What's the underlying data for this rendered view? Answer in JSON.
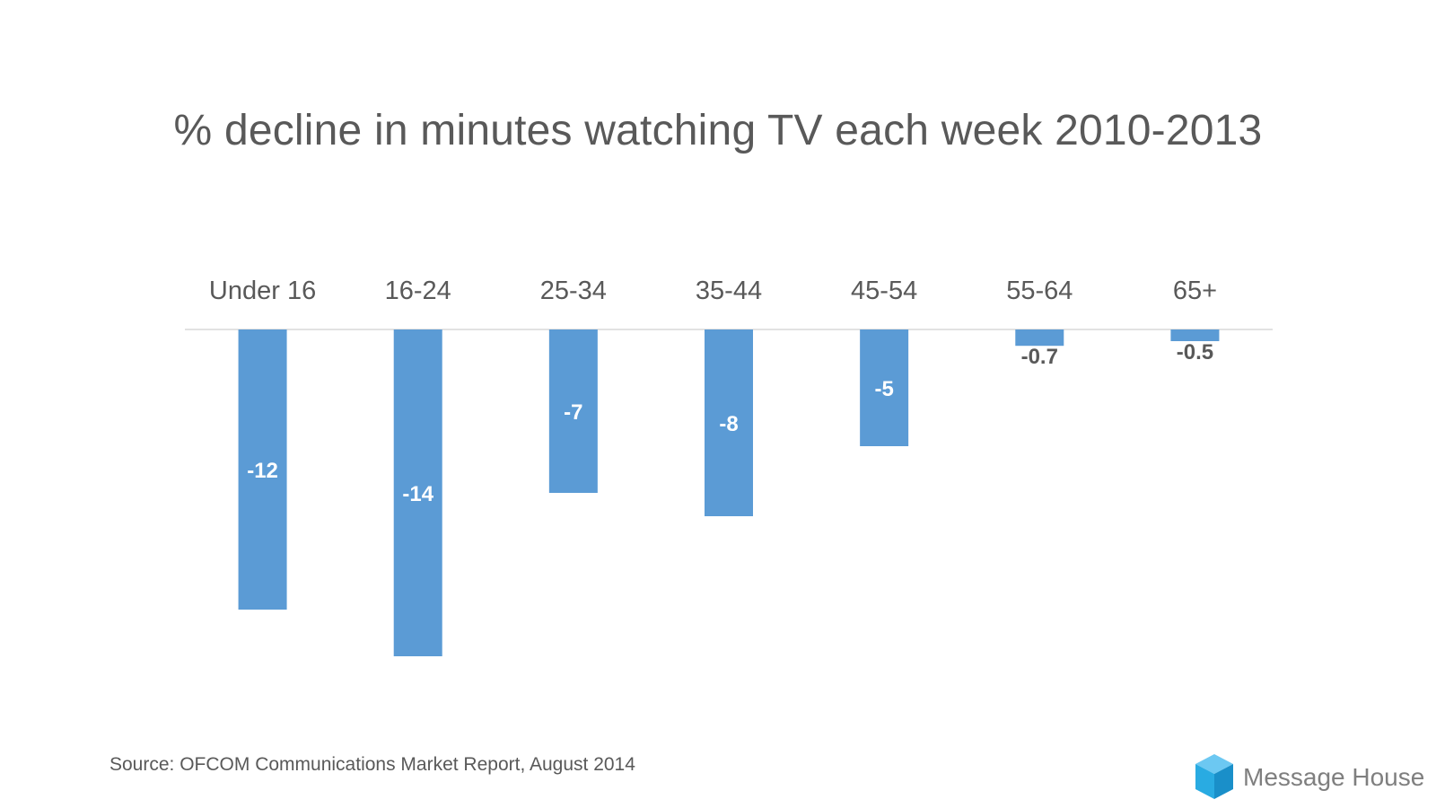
{
  "chart_data": {
    "type": "bar",
    "title": "% decline in minutes watching TV each week 2010-2013",
    "categories": [
      "Under 16",
      "16-24",
      "25-34",
      "35-44",
      "45-54",
      "55-64",
      "65+"
    ],
    "values": [
      -12,
      -14,
      -7,
      -8,
      -5,
      -0.7,
      -0.5
    ],
    "data_labels": [
      "-12",
      "-14",
      "-7",
      "-8",
      "-5",
      "-0.7",
      "-0.5"
    ],
    "ylim": [
      -14,
      0
    ],
    "category_axis_position": "top",
    "grid": false,
    "legend": "none",
    "bar_color": "#5b9bd5"
  },
  "footer": {
    "source": "Source: OFCOM Communications Market Report, August 2014",
    "brand": "Message House"
  },
  "colors": {
    "text": "#595959",
    "axis": "#d9d9d9",
    "label_inside": "#ffffff",
    "label_outside": "#595959",
    "logo_light": "#6cc8f2",
    "logo_mid": "#29abe2",
    "logo_dark": "#1a8fc9"
  }
}
